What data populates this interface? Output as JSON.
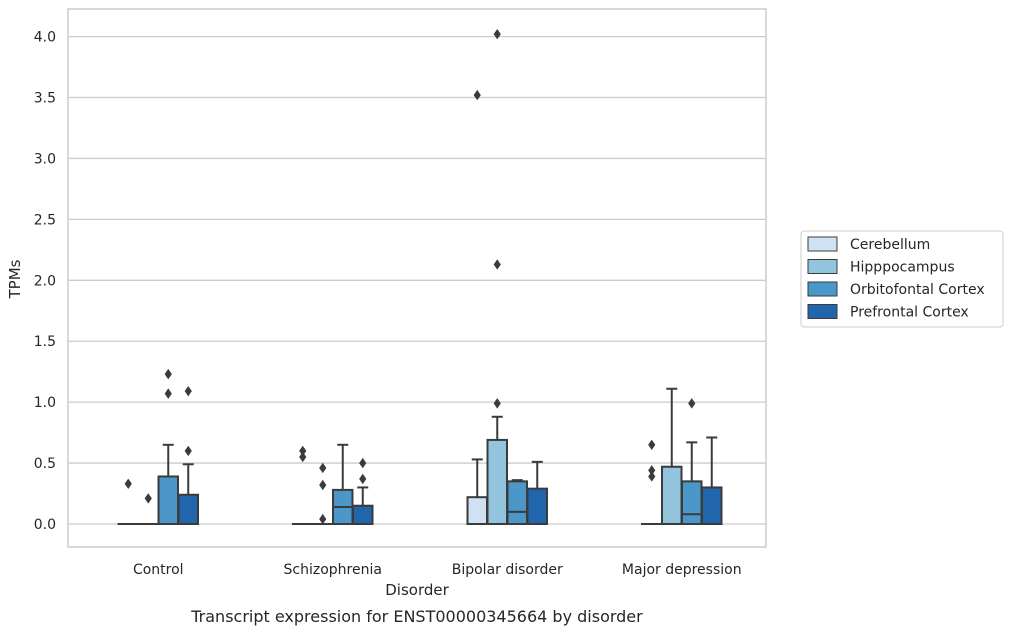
{
  "chart_data": {
    "type": "box",
    "caption": "Transcript expression for ENST00000345664 by disorder",
    "xlabel": "Disorder",
    "ylabel": "TPMs",
    "ylim": [
      -0.2,
      4.23
    ],
    "yticks": [
      "0.0",
      "0.5",
      "1.0",
      "1.5",
      "2.0",
      "2.5",
      "3.0",
      "3.5",
      "4.0"
    ],
    "categories": [
      "Control",
      "Schizophrenia",
      "Bipolar disorder",
      "Major depression"
    ],
    "grid": "horizontal",
    "legend_position": "right",
    "series": [
      {
        "name": "Cerebellum",
        "color": "#cfe1f2",
        "boxes": [
          {
            "q1": 0,
            "median": 0,
            "q3": 0,
            "whislo": 0,
            "whishi": 0,
            "fliers": [
              0.33
            ]
          },
          {
            "q1": 0,
            "median": 0,
            "q3": 0,
            "whislo": 0,
            "whishi": 0,
            "fliers": [
              0.6,
              0.55
            ]
          },
          {
            "q1": 0,
            "median": 0,
            "q3": 0.22,
            "whislo": 0,
            "whishi": 0.53,
            "fliers": [
              3.52
            ]
          },
          {
            "q1": 0,
            "median": 0,
            "q3": 0,
            "whislo": 0,
            "whishi": 0,
            "fliers": [
              0.65,
              0.44,
              0.39
            ]
          }
        ]
      },
      {
        "name": "Hipppocampus",
        "color": "#93c4de",
        "boxes": [
          {
            "q1": 0,
            "median": 0,
            "q3": 0,
            "whislo": 0,
            "whishi": 0,
            "fliers": [
              0.21
            ]
          },
          {
            "q1": 0,
            "median": 0,
            "q3": 0,
            "whislo": 0,
            "whishi": 0,
            "fliers": [
              0.46,
              0.32,
              0.04
            ]
          },
          {
            "q1": 0,
            "median": 0,
            "q3": 0.69,
            "whislo": 0,
            "whishi": 0.88,
            "fliers": [
              4.02,
              2.13,
              0.99
            ]
          },
          {
            "q1": 0,
            "median": 0,
            "q3": 0.47,
            "whislo": 0,
            "whishi": 1.11,
            "fliers": []
          }
        ]
      },
      {
        "name": "Orbitofontal Cortex",
        "color": "#4b97c9",
        "boxes": [
          {
            "q1": 0,
            "median": 0,
            "q3": 0.39,
            "whislo": 0,
            "whishi": 0.65,
            "fliers": [
              1.23,
              1.07
            ]
          },
          {
            "q1": 0,
            "median": 0.14,
            "q3": 0.28,
            "whislo": 0,
            "whishi": 0.65,
            "fliers": []
          },
          {
            "q1": 0,
            "median": 0.1,
            "q3": 0.35,
            "whislo": 0,
            "whishi": 0.36,
            "fliers": []
          },
          {
            "q1": 0,
            "median": 0.08,
            "q3": 0.35,
            "whislo": 0,
            "whishi": 0.67,
            "fliers": [
              0.99
            ]
          }
        ]
      },
      {
        "name": "Prefrontal Cortex",
        "color": "#2166ac",
        "boxes": [
          {
            "q1": 0,
            "median": 0,
            "q3": 0.24,
            "whislo": 0,
            "whishi": 0.49,
            "fliers": [
              1.09,
              0.6
            ]
          },
          {
            "q1": 0,
            "median": 0,
            "q3": 0.15,
            "whislo": 0,
            "whishi": 0.3,
            "fliers": [
              0.5,
              0.37
            ]
          },
          {
            "q1": 0,
            "median": 0,
            "q3": 0.29,
            "whislo": 0,
            "whishi": 0.51,
            "fliers": []
          },
          {
            "q1": 0,
            "median": 0,
            "q3": 0.3,
            "whislo": 0,
            "whishi": 0.71,
            "fliers": []
          }
        ]
      }
    ]
  }
}
